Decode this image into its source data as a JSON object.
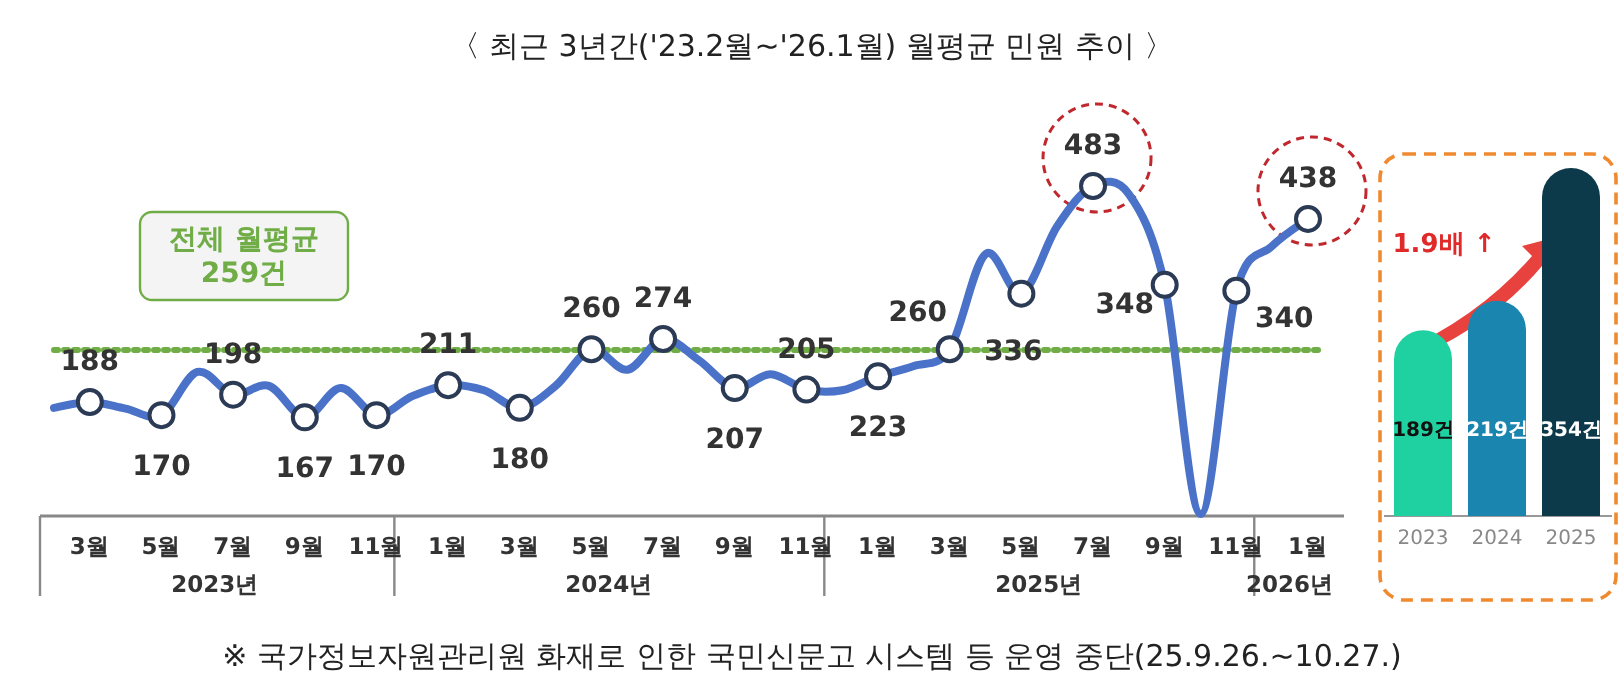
{
  "chart_data": [
    {
      "type": "line",
      "title": "〈 최근 3년간('23.2월~'26.1월) 월평균 민원 추이 〉",
      "categories": [
        null,
        "3월",
        null,
        "5월",
        null,
        "7월",
        null,
        "9월",
        null,
        "11월",
        null,
        "1월",
        null,
        "3월",
        null,
        "5월",
        null,
        "7월",
        null,
        "9월",
        null,
        "11월",
        null,
        "1월",
        null,
        "3월",
        null,
        "5월",
        null,
        "7월",
        null,
        "9월",
        null,
        "11월",
        null,
        "1월"
      ],
      "series": [
        {
          "color": "#4a72c8",
          "values": [
            180,
            188,
            179,
            170,
            229,
            198,
            210,
            167,
            207,
            170,
            196,
            211,
            204,
            180,
            210,
            260,
            232,
            274,
            245,
            207,
            226,
            205,
            204,
            223,
            237,
            260,
            390,
            336,
            428,
            483,
            472,
            348,
            35,
            340,
            401,
            438
          ],
          "value_labels": [
            null,
            "188",
            null,
            "170",
            null,
            "198",
            null,
            "167",
            null,
            "170",
            null,
            "211",
            null,
            "180",
            null,
            "260",
            null,
            "274",
            null,
            "207",
            null,
            "205",
            null,
            "223",
            null,
            "260",
            null,
            "336",
            null,
            "483",
            null,
            "348",
            null,
            "340",
            null,
            "438"
          ]
        }
      ],
      "marker": "circle",
      "ref_lines": [
        {
          "axis": "y",
          "value": 259,
          "label": "전체 월평균\n259건",
          "color": "#70ad47",
          "line_style": "dotted"
        }
      ],
      "annotations": [
        "2023년",
        "2024년",
        "2025년",
        "2026년",
        "※ 국가정보자원관리원 화재로 인한 국민신문고 시스템 등 운영 중단(25.9.26.~10.27.)"
      ],
      "line_style": "solid"
    },
    {
      "type": "bar",
      "categories": [
        "2023",
        "2024",
        "2025"
      ],
      "values": [
        189,
        219,
        354
      ],
      "colors": [
        "#1fd1a0",
        "#1a86b0",
        "#0d3a4a"
      ],
      "value_labels": [
        "189건",
        "219건",
        "354건"
      ],
      "annotations": [
        "1.9배 ↑"
      ]
    }
  ]
}
